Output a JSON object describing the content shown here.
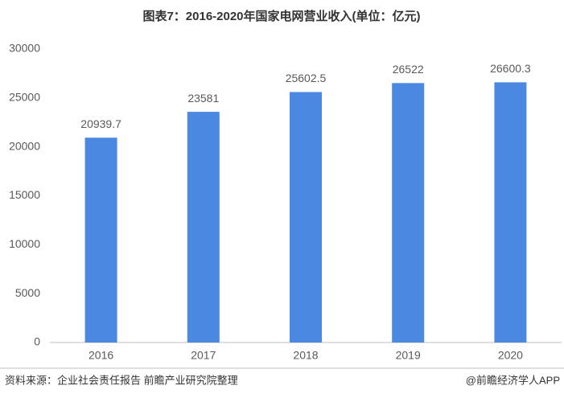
{
  "chart_data": {
    "type": "bar",
    "title": "图表7：2016-2020年国家电网营业收入(单位：亿元)",
    "categories": [
      "2016",
      "2017",
      "2018",
      "2019",
      "2020"
    ],
    "values": [
      20939.7,
      23581,
      25602.5,
      26522,
      26600.3
    ],
    "color": "#4a88e2",
    "ylim": [
      0,
      30000
    ],
    "yticks": [
      0,
      5000,
      10000,
      15000,
      20000,
      25000,
      30000
    ],
    "grid": false,
    "source": "资料来源：企业社会责任报告 前瞻产业研究院整理",
    "credit": "@前瞻经济学人APP"
  }
}
